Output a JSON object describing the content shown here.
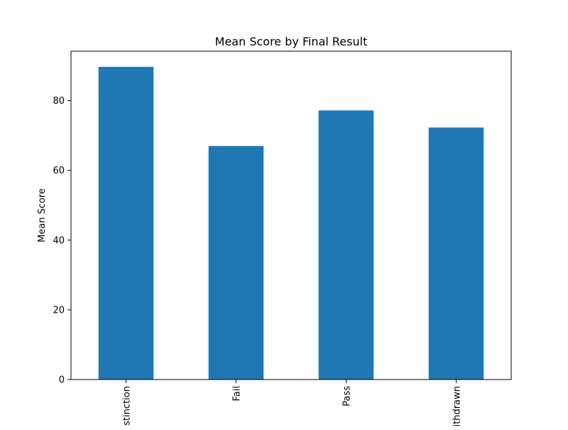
{
  "chart_data": {
    "type": "bar",
    "title": "Mean Score by Final Result",
    "xlabel": "",
    "ylabel": "Mean Score",
    "categories": [
      "Distinction",
      "Fail",
      "Pass",
      "Withdrawn"
    ],
    "values": [
      89.7,
      67.0,
      77.2,
      72.3
    ],
    "ylim": [
      0,
      94.2
    ],
    "yticks": [
      0,
      20,
      40,
      60,
      80
    ],
    "bar_color": "#1f77b4",
    "grid": false,
    "legend": "none"
  }
}
